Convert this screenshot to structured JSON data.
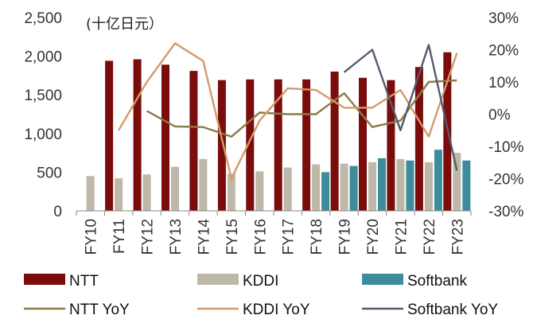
{
  "chart_data": {
    "type": "bar",
    "unit_label": "(十亿日元）",
    "categories": [
      "FY10",
      "FY11",
      "FY12",
      "FY13",
      "FY14",
      "FY15",
      "FY16",
      "FY17",
      "FY18",
      "FY19",
      "FY20",
      "FY21",
      "FY22",
      "FY23"
    ],
    "y_left": {
      "min": 0,
      "max": 2500,
      "step": 500,
      "ticks": [
        "0",
        "500",
        "1,000",
        "1,500",
        "2,000",
        "2,500"
      ]
    },
    "y_right": {
      "min": -30,
      "max": 30,
      "step": 10,
      "ticks": [
        "-30%",
        "-20%",
        "-10%",
        "0%",
        "10%",
        "20%",
        "30%"
      ]
    },
    "bar_series": [
      {
        "name": "NTT",
        "color": "#7a0c0c",
        "values": [
          null,
          1940,
          1960,
          1890,
          1810,
          1690,
          1700,
          1700,
          1700,
          1800,
          1720,
          1690,
          1860,
          2050
        ]
      },
      {
        "name": "KDDI",
        "color": "#bdb8a8",
        "values": [
          450,
          420,
          470,
          570,
          670,
          480,
          510,
          560,
          600,
          610,
          630,
          670,
          630,
          750
        ]
      },
      {
        "name": "Softbank",
        "color": "#3e8b9c",
        "values": [
          null,
          null,
          null,
          null,
          null,
          null,
          null,
          null,
          500,
          580,
          680,
          650,
          790,
          650
        ]
      }
    ],
    "line_series": [
      {
        "name": "NTT YoY",
        "color": "#8b7a4a",
        "values": [
          null,
          null,
          1,
          -3.8,
          -4,
          -7,
          0.5,
          0,
          0,
          6.5,
          -4,
          -2,
          10,
          10.5
        ]
      },
      {
        "name": "KDDI YoY",
        "color": "#d49a6a",
        "values": [
          null,
          -5,
          10,
          22,
          16.5,
          -20,
          -2,
          8,
          7.5,
          2,
          2,
          7.5,
          -7,
          19
        ]
      },
      {
        "name": "Softbank YoY",
        "color": "#545a6e",
        "values": [
          null,
          null,
          null,
          null,
          null,
          null,
          null,
          null,
          null,
          13,
          20,
          -5,
          21.5,
          -17.5
        ]
      }
    ]
  }
}
